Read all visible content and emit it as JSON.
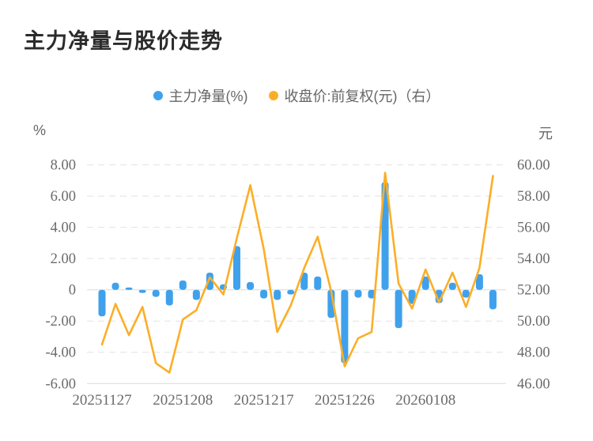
{
  "title": "主力净量与股价走势",
  "legend": [
    {
      "label": "主力净量(%)",
      "color": "#3fa1ec"
    },
    {
      "label": "收盘价:前复权(元)（右）",
      "color": "#fcae27"
    }
  ],
  "colors": {
    "bar": "#3fa1ec",
    "line": "#fcae27",
    "grid": "#e2e2e2",
    "axis_text": "#6b6b6b",
    "title_text": "#2b2b2b"
  },
  "chart_data": {
    "type": "combo",
    "left_axis": {
      "unit": "%",
      "min": -6,
      "max": 8,
      "ticks": [
        "8.00",
        "6.00",
        "4.00",
        "2.00",
        "0",
        "-2.00",
        "-4.00",
        "-6.00"
      ]
    },
    "right_axis": {
      "unit": "元",
      "min": 46,
      "max": 60,
      "ticks": [
        "60.00",
        "58.00",
        "56.00",
        "54.00",
        "52.00",
        "50.00",
        "48.00",
        "46.00"
      ]
    },
    "x_tick_labels": [
      {
        "label": "20251127",
        "index": 0
      },
      {
        "label": "20251208",
        "index": 6
      },
      {
        "label": "20251217",
        "index": 12
      },
      {
        "label": "20251226",
        "index": 18
      },
      {
        "label": "20260108",
        "index": 24
      }
    ],
    "point_count": 30,
    "series": [
      {
        "name": "主力净量(%)",
        "type": "bar",
        "axis": "left",
        "color": "#3fa1ec",
        "values": [
          -1.7,
          0.45,
          0.15,
          -0.2,
          -0.45,
          -1.0,
          0.6,
          -0.65,
          1.1,
          0.35,
          2.8,
          0.5,
          -0.55,
          -0.65,
          -0.3,
          1.1,
          0.85,
          -1.8,
          -4.7,
          -0.5,
          -0.55,
          6.9,
          -2.45,
          -0.9,
          0.85,
          -0.85,
          0.45,
          -0.5,
          1.0,
          -1.25
        ]
      },
      {
        "name": "收盘价:前复权(元)（右）",
        "type": "line",
        "axis": "right",
        "color": "#fcae27",
        "values": [
          48.5,
          51.1,
          49.1,
          50.9,
          47.3,
          46.7,
          50.1,
          50.7,
          52.8,
          51.7,
          55.3,
          58.7,
          54.6,
          49.3,
          51.0,
          53.4,
          55.4,
          51.9,
          47.1,
          48.9,
          49.3,
          59.5,
          52.4,
          50.8,
          53.3,
          51.2,
          53.1,
          50.9,
          53.4,
          59.3
        ]
      }
    ],
    "grid": "horizontal dashed lines on, legend top center"
  }
}
